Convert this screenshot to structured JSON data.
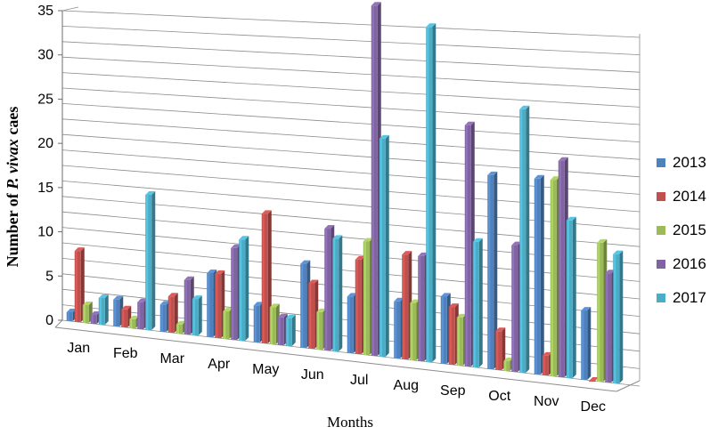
{
  "chart_data": {
    "type": "bar",
    "title": "",
    "xlabel": "Months",
    "ylabel_prefix": "Number of ",
    "ylabel_italic": "P. vivax",
    "ylabel_suffix": " caes",
    "ylim": [
      0,
      35
    ],
    "yticks": [
      "0",
      "5",
      "10",
      "15",
      "20",
      "25",
      "30",
      "35"
    ],
    "categories": [
      "Jan",
      "Feb",
      "Mar",
      "Apr",
      "May",
      "Jun",
      "Jul",
      "Aug",
      "Sep",
      "Oct",
      "Nov",
      "Dec"
    ],
    "legend_position": "right",
    "grid": true,
    "series": [
      {
        "name": "2013",
        "color": "#4f81bd",
        "values": [
          1,
          3,
          3,
          7,
          4,
          9,
          6,
          6,
          7,
          20,
          20,
          7
        ]
      },
      {
        "name": "2014",
        "color": "#c0504d",
        "values": [
          8,
          2,
          4,
          7,
          14,
          7,
          10,
          11,
          6,
          4,
          2,
          0
        ]
      },
      {
        "name": "2015",
        "color": "#9bbb59",
        "values": [
          2,
          1,
          1,
          3,
          4,
          4,
          12,
          6,
          5,
          1,
          20,
          14
        ]
      },
      {
        "name": "2016",
        "color": "#8064a2",
        "values": [
          1,
          3,
          6,
          10,
          3,
          13,
          37,
          11,
          25,
          13,
          22,
          11
        ]
      },
      {
        "name": "2017",
        "color": "#4bacc6",
        "values": [
          3,
          15,
          4,
          11,
          3,
          12,
          23,
          35,
          13,
          27,
          16,
          13
        ]
      }
    ]
  }
}
